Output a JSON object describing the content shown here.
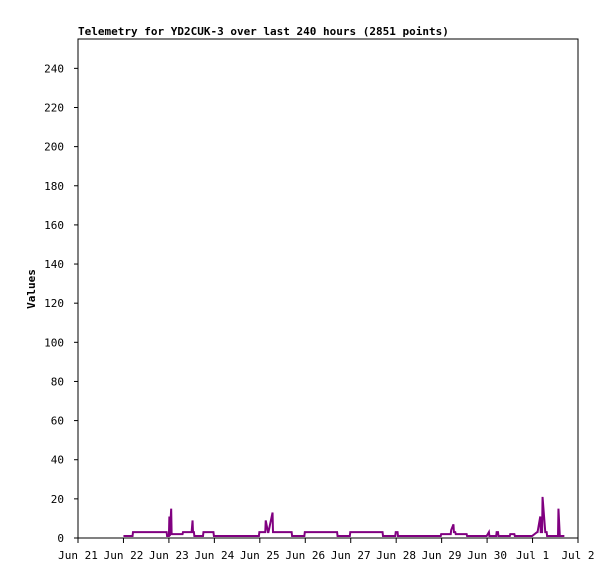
{
  "chart_data": {
    "type": "line",
    "title": "Telemetry for YD2CUK-3 over last 240 hours (2851 points)",
    "ylabel": "Values",
    "xlabel": "",
    "ylim": [
      0,
      255
    ],
    "xlim": [
      0,
      11
    ],
    "grid": false,
    "y_ticks": [
      0,
      20,
      40,
      60,
      80,
      100,
      120,
      140,
      160,
      180,
      200,
      220,
      240
    ],
    "x_ticks": [
      {
        "value": 0,
        "label": "Jun 21"
      },
      {
        "value": 1,
        "label": "Jun 22"
      },
      {
        "value": 2,
        "label": "Jun 23"
      },
      {
        "value": 3,
        "label": "Jun 24"
      },
      {
        "value": 4,
        "label": "Jun 25"
      },
      {
        "value": 5,
        "label": "Jun 26"
      },
      {
        "value": 6,
        "label": "Jun 27"
      },
      {
        "value": 7,
        "label": "Jun 28"
      },
      {
        "value": 8,
        "label": "Jun 29"
      },
      {
        "value": 9,
        "label": "Jun 30"
      },
      {
        "value": 10,
        "label": "Jul 1"
      },
      {
        "value": 11,
        "label": "Jul 2"
      }
    ],
    "series": [
      {
        "color": "#800080",
        "x": [
          1.0,
          1.2,
          1.21,
          1.95,
          1.96,
          2.0,
          2.01,
          2.02,
          2.05,
          2.06,
          2.3,
          2.31,
          2.5,
          2.52,
          2.53,
          2.55,
          2.56,
          2.75,
          2.76,
          2.98,
          2.99,
          3.1,
          3.11,
          3.2,
          3.21,
          3.98,
          3.99,
          4.12,
          4.13,
          4.18,
          4.19,
          4.28,
          4.29,
          4.31,
          4.32,
          4.7,
          4.71,
          4.98,
          4.99,
          5.7,
          5.71,
          5.98,
          5.99,
          6.7,
          6.71,
          6.98,
          6.99,
          7.03,
          7.04,
          7.1,
          7.11,
          7.5,
          7.51,
          7.98,
          7.99,
          8.2,
          8.21,
          8.26,
          8.27,
          8.3,
          8.31,
          8.55,
          8.56,
          8.98,
          8.99,
          9.04,
          9.05,
          9.2,
          9.21,
          9.24,
          9.25,
          9.5,
          9.51,
          9.6,
          9.61,
          9.98,
          9.99,
          10.1,
          10.11,
          10.17,
          10.18,
          10.21,
          10.22,
          10.28,
          10.29,
          10.31,
          10.32,
          10.56,
          10.57,
          10.6,
          10.61,
          10.7
        ],
        "y": [
          1,
          1,
          3,
          3,
          1,
          1,
          11,
          1,
          15,
          2,
          2,
          3,
          3,
          9,
          3,
          3,
          1,
          1,
          3,
          3,
          1,
          1,
          1,
          1,
          1,
          1,
          3,
          3,
          9,
          3,
          3,
          13,
          3,
          3,
          3,
          3,
          1,
          1,
          3,
          3,
          1,
          1,
          3,
          3,
          1,
          1,
          3,
          3,
          1,
          1,
          1,
          1,
          1,
          1,
          2,
          2,
          4,
          7,
          3,
          3,
          2,
          2,
          1,
          1,
          1,
          3,
          1,
          1,
          3,
          3,
          1,
          1,
          2,
          2,
          1,
          1,
          1,
          3,
          3,
          11,
          3,
          3,
          21,
          3,
          3,
          3,
          1,
          1,
          15,
          1,
          1,
          1
        ]
      }
    ]
  }
}
